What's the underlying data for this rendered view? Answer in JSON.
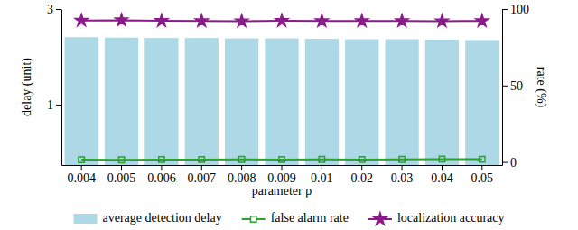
{
  "chart_data": {
    "type": "bar",
    "x_label": "parameter ρ",
    "y_label": "delay (unit)",
    "y2_label": "rate (%)",
    "categories": [
      "0.004",
      "0.005",
      "0.006",
      "0.007",
      "0.008",
      "0.009",
      "0.01",
      "0.02",
      "0.03",
      "0.04",
      "0.05"
    ],
    "log": "y",
    "ylim": [
      0.5,
      3
    ],
    "yticks": [
      1,
      3
    ],
    "y2lim": [
      -2,
      100
    ],
    "y2ticks": [
      0,
      50,
      100
    ],
    "legend": "bottom",
    "series": [
      {
        "name": "average detection delay",
        "type": "bar",
        "color": "#add8e6",
        "values": [
          2.17,
          2.16,
          2.15,
          2.15,
          2.14,
          2.14,
          2.13,
          2.12,
          2.12,
          2.11,
          2.1
        ]
      },
      {
        "name": "false alarm rate",
        "type": "line",
        "axis": "y2",
        "color": "#2ca02c",
        "marker": "square",
        "values": [
          1.5,
          1.4,
          1.6,
          1.6,
          1.7,
          1.6,
          1.7,
          1.6,
          1.7,
          1.9,
          1.8
        ]
      },
      {
        "name": "localization accuracy",
        "type": "line",
        "axis": "y2",
        "color": "#8b1a8b",
        "marker": "star",
        "values": [
          92.5,
          92.7,
          92.3,
          92.2,
          92.1,
          92.3,
          92.2,
          92.2,
          92.2,
          92.1,
          92.2
        ]
      }
    ]
  }
}
